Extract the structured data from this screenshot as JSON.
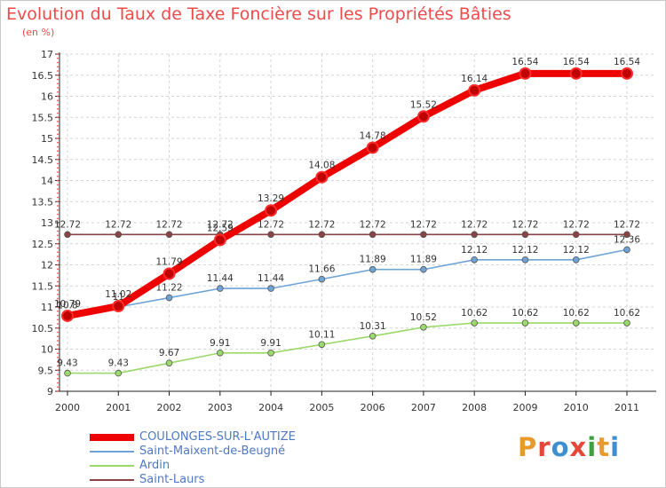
{
  "title": "Evolution du Taux de Taxe Foncière sur les Propriétés Bâties",
  "subtitle": "(en %)",
  "logo": {
    "text": "Proxiti",
    "letter_colors": [
      "#e99a2c",
      "#e5473a",
      "#3e8fd0",
      "#e5473a",
      "#3ea042",
      "#e99a2c",
      "#3e8fd0"
    ]
  },
  "chart_data": {
    "type": "line",
    "categories": [
      "2000",
      "2001",
      "2002",
      "2003",
      "2004",
      "2005",
      "2006",
      "2007",
      "2008",
      "2009",
      "2010",
      "2011"
    ],
    "ylim": [
      9,
      17
    ],
    "yticks": [
      "9",
      "9.5",
      "10",
      "10.5",
      "11",
      "11.5",
      "12",
      "12.5",
      "13",
      "13.5",
      "14",
      "14.5",
      "15",
      "15.5",
      "16",
      "16.5",
      "17"
    ],
    "grid": true,
    "legend_position": "bottom-left",
    "series": [
      {
        "name": "COULONGES-SUR-L'AUTIZE",
        "color": "#ee0000",
        "values": [
          10.79,
          11.02,
          11.79,
          12.59,
          13.29,
          14.08,
          14.78,
          15.52,
          16.14,
          16.54,
          16.54,
          16.54
        ],
        "labels": [
          "10.79",
          "11.02",
          "11.79",
          "12.59",
          "13.29",
          "14.08",
          "14.78",
          "15.52",
          "16.14",
          "16.54",
          "16.54",
          "16.54"
        ]
      },
      {
        "name": "Saint-Maixent-de-Beugné",
        "color": "#6fa3d6",
        "values": [
          10.8,
          11,
          11.22,
          11.44,
          11.44,
          11.66,
          11.89,
          11.89,
          12.12,
          12.12,
          12.12,
          12.36
        ],
        "labels": [
          "10.8",
          "11",
          "11.22",
          "11.44",
          "11.44",
          "11.66",
          "11.89",
          "11.89",
          "12.12",
          "12.12",
          "12.12",
          "12.36"
        ]
      },
      {
        "name": "Ardin",
        "color": "#9bd96a",
        "values": [
          9.43,
          9.43,
          9.67,
          9.91,
          9.91,
          10.11,
          10.31,
          10.52,
          10.62,
          10.62,
          10.62,
          10.62
        ],
        "labels": [
          "9.43",
          "9.43",
          "9.67",
          "9.91",
          "9.91",
          "10.11",
          "10.31",
          "10.52",
          "10.62",
          "10.62",
          "10.62",
          "10.62"
        ]
      },
      {
        "name": "Saint-Laurs",
        "color": "#8a4444",
        "values": [
          12.72,
          12.72,
          12.72,
          12.72,
          12.72,
          12.72,
          12.72,
          12.72,
          12.72,
          12.72,
          12.72,
          12.72
        ],
        "labels": [
          "12.72",
          "12.72",
          "12.72",
          "12.72",
          "12.72",
          "12.72",
          "12.72",
          "12.72",
          "12.72",
          "12.72",
          "12.72",
          "12.72"
        ]
      }
    ]
  }
}
